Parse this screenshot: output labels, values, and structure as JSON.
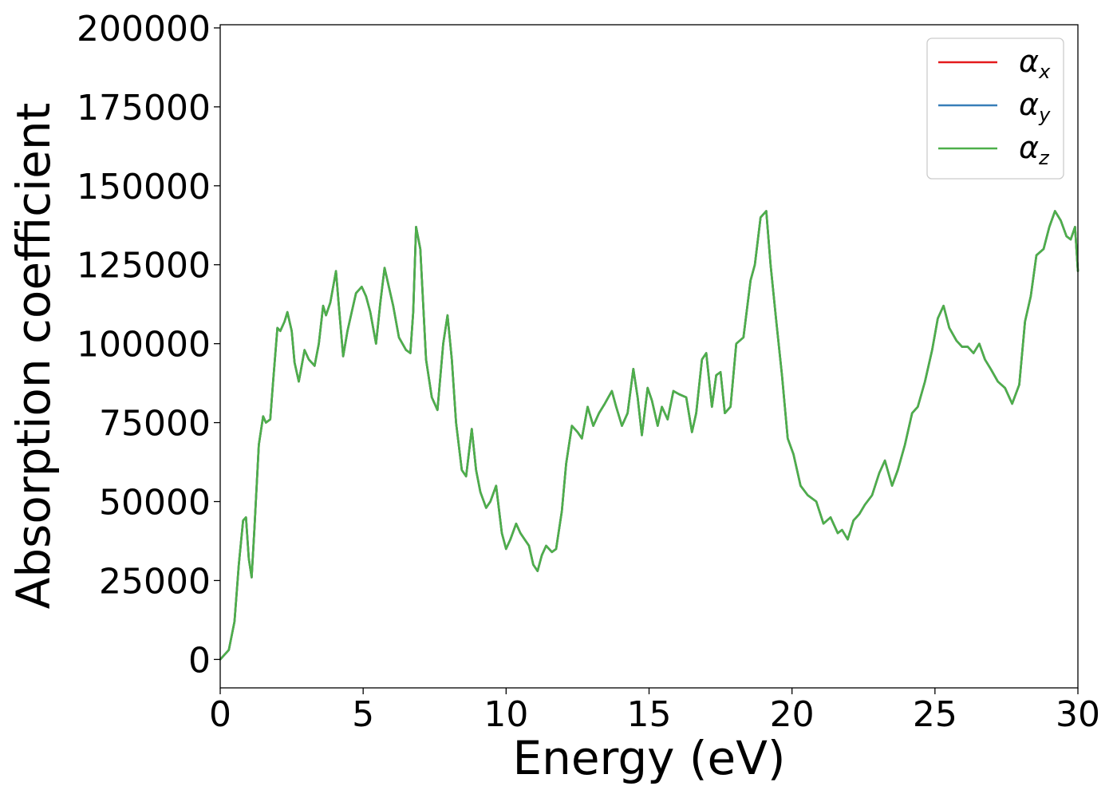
{
  "chart_data": {
    "type": "line",
    "xlabel": "Energy (eV)",
    "ylabel": "Absorption coefficient",
    "xlim": [
      0,
      30
    ],
    "ylim": [
      -9000,
      201000
    ],
    "xticks": [
      "0",
      "5",
      "10",
      "15",
      "20",
      "25",
      "30"
    ],
    "xtick_values": [
      0,
      5,
      10,
      15,
      20,
      25,
      30
    ],
    "yticks": [
      "0",
      "25000",
      "50000",
      "75000",
      "100000",
      "125000",
      "150000",
      "175000",
      "200000"
    ],
    "ytick_values": [
      0,
      25000,
      50000,
      75000,
      100000,
      125000,
      150000,
      175000,
      200000
    ],
    "grid": false,
    "legend_position": "top-right",
    "series": [
      {
        "name": "α",
        "subscript": "x",
        "color": "#e41a1c"
      },
      {
        "name": "α",
        "subscript": "y",
        "color": "#377eb8"
      },
      {
        "name": "α",
        "subscript": "z",
        "color": "#4daf4a"
      }
    ],
    "x": [
      0,
      0.3,
      0.5,
      0.65,
      0.8,
      0.9,
      1.0,
      1.1,
      1.2,
      1.35,
      1.5,
      1.6,
      1.75,
      1.85,
      2.0,
      2.1,
      2.25,
      2.35,
      2.5,
      2.6,
      2.75,
      2.95,
      3.1,
      3.3,
      3.45,
      3.6,
      3.7,
      3.85,
      4.05,
      4.15,
      4.3,
      4.45,
      4.6,
      4.75,
      4.95,
      5.1,
      5.25,
      5.45,
      5.6,
      5.75,
      5.9,
      6.05,
      6.25,
      6.5,
      6.65,
      6.75,
      6.85,
      7.0,
      7.2,
      7.4,
      7.6,
      7.8,
      7.95,
      8.1,
      8.25,
      8.45,
      8.6,
      8.8,
      8.95,
      9.1,
      9.3,
      9.45,
      9.65,
      9.85,
      10.0,
      10.15,
      10.35,
      10.5,
      10.65,
      10.8,
      10.95,
      11.1,
      11.25,
      11.4,
      11.6,
      11.75,
      11.95,
      12.1,
      12.3,
      12.5,
      12.65,
      12.85,
      13.05,
      13.25,
      13.45,
      13.7,
      13.85,
      14.05,
      14.25,
      14.45,
      14.6,
      14.75,
      14.95,
      15.1,
      15.3,
      15.45,
      15.65,
      15.85,
      16.05,
      16.3,
      16.5,
      16.65,
      16.85,
      17.0,
      17.2,
      17.35,
      17.5,
      17.65,
      17.85,
      18.05,
      18.3,
      18.55,
      18.7,
      18.9,
      19.1,
      19.25,
      19.45,
      19.65,
      19.85,
      20.05,
      20.3,
      20.55,
      20.85,
      21.1,
      21.35,
      21.6,
      21.75,
      21.95,
      22.15,
      22.35,
      22.55,
      22.8,
      23.05,
      23.25,
      23.5,
      23.7,
      23.95,
      24.2,
      24.4,
      24.65,
      24.9,
      25.1,
      25.3,
      25.5,
      25.75,
      25.95,
      26.15,
      26.35,
      26.55,
      26.75,
      26.95,
      27.2,
      27.45,
      27.7,
      27.95,
      28.15,
      28.35,
      28.55,
      28.8,
      29.0,
      29.2,
      29.4,
      29.6,
      29.75,
      29.9,
      30.0
    ],
    "y": [
      0,
      3000,
      12000,
      30000,
      44000,
      45000,
      32000,
      26000,
      42000,
      68000,
      77000,
      75000,
      76000,
      88000,
      105000,
      104000,
      107000,
      110000,
      104000,
      94000,
      88000,
      98000,
      95000,
      93000,
      100000,
      112000,
      109000,
      113000,
      123000,
      112000,
      96000,
      104000,
      110000,
      116000,
      118000,
      115000,
      110000,
      100000,
      113000,
      124000,
      118000,
      112000,
      102000,
      98000,
      97000,
      110000,
      137000,
      130000,
      95000,
      83000,
      79000,
      100000,
      109000,
      95000,
      75000,
      60000,
      58000,
      73000,
      60000,
      53000,
      48000,
      50000,
      55000,
      40000,
      35000,
      38000,
      43000,
      40000,
      38000,
      36000,
      30000,
      28000,
      33000,
      36000,
      34000,
      35000,
      47000,
      62000,
      74000,
      72000,
      70000,
      80000,
      74000,
      78000,
      81000,
      85000,
      80000,
      74000,
      78000,
      92000,
      83000,
      71000,
      86000,
      82000,
      74000,
      80000,
      76000,
      85000,
      84000,
      83000,
      72000,
      78000,
      95000,
      97000,
      80000,
      90000,
      91000,
      78000,
      80000,
      100000,
      102000,
      120000,
      125000,
      140000,
      142000,
      125000,
      107000,
      90000,
      70000,
      65000,
      55000,
      52000,
      50000,
      43000,
      45000,
      40000,
      41000,
      38000,
      44000,
      46000,
      49000,
      52000,
      59000,
      63000,
      55000,
      60000,
      68000,
      78000,
      80000,
      88000,
      98000,
      108000,
      112000,
      105000,
      101000,
      99000,
      99000,
      97000,
      100000,
      95000,
      92000,
      88000,
      86000,
      81000,
      87000,
      107000,
      115000,
      128000,
      130000,
      137000,
      142000,
      139000,
      134000,
      133000,
      137000,
      123000
    ]
  }
}
